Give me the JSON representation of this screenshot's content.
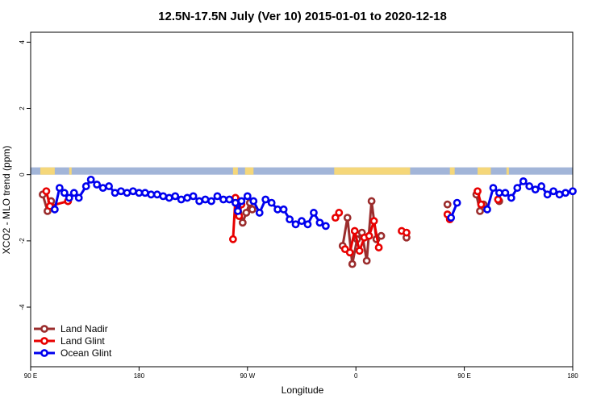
{
  "chart_data": {
    "type": "line",
    "title": "12.5N-17.5N July (Ver 10)   2015-01-01 to 2020-12-18",
    "xlabel": "Longitude",
    "ylabel": "XCO2 - MLO trend (ppm)",
    "x_tick_labels": [
      "90 E",
      "180",
      "90 W",
      "0",
      "90 E",
      "180"
    ],
    "x_tick_values": [
      90,
      180,
      270,
      360,
      450,
      540
    ],
    "y_tick_labels": [
      "-4",
      "-2",
      "0",
      "2",
      "4"
    ],
    "y_tick_values": [
      -4,
      -2,
      0,
      2,
      4
    ],
    "xlim": [
      90,
      540
    ],
    "ylim": [
      -5.8,
      4.3
    ],
    "grid": false,
    "legend": "bottom-left",
    "map_strip": {
      "ymin": 0.0,
      "ymax": 0.22,
      "ocean_color": "#a2b5d8",
      "land_color": "#f5d77a",
      "land_spans": [
        [
          98,
          110
        ],
        [
          122,
          124
        ],
        [
          258,
          262
        ],
        [
          268,
          275
        ],
        [
          342,
          405
        ],
        [
          438,
          442
        ],
        [
          461,
          472
        ],
        [
          485,
          487
        ]
      ]
    },
    "series": [
      {
        "name": "Land Nadir",
        "color": "#9b2d2d",
        "segments": [
          [
            [
              100,
              -0.6
            ],
            [
              104,
              -1.1
            ],
            [
              107,
              -0.8
            ]
          ],
          [
            [
              121,
              -0.8
            ]
          ],
          [
            [
              263,
              -0.8
            ],
            [
              266,
              -1.45
            ],
            [
              269,
              -1.15
            ],
            [
              272,
              -0.85
            ],
            [
              274,
              -1.05
            ]
          ],
          [
            [
              349,
              -2.15
            ],
            [
              353,
              -1.3
            ],
            [
              357,
              -2.7
            ],
            [
              361,
              -1.95
            ],
            [
              365,
              -1.75
            ],
            [
              369,
              -2.6
            ],
            [
              373,
              -0.8
            ],
            [
              377,
              -1.95
            ],
            [
              381,
              -1.85
            ]
          ],
          [
            [
              402,
              -1.9
            ]
          ],
          [
            [
              436,
              -0.9
            ]
          ],
          [
            [
              460,
              -0.6
            ],
            [
              463,
              -1.1
            ],
            [
              466,
              -0.9
            ]
          ],
          [
            [
              479,
              -0.8
            ]
          ]
        ]
      },
      {
        "name": "Land Glint",
        "color": "#e80000",
        "segments": [
          [
            [
              103,
              -0.5
            ],
            [
              106,
              -0.95
            ],
            [
              121,
              -0.8
            ]
          ],
          [
            [
              258,
              -1.95
            ],
            [
              260,
              -0.7
            ],
            [
              263,
              -1.25
            ],
            [
              265,
              -0.9
            ]
          ],
          [
            [
              343,
              -1.3
            ],
            [
              346,
              -1.15
            ]
          ],
          [
            [
              351,
              -2.25
            ],
            [
              355,
              -2.35
            ],
            [
              359,
              -1.7
            ],
            [
              363,
              -2.3
            ],
            [
              367,
              -1.9
            ],
            [
              371,
              -1.85
            ],
            [
              375,
              -1.4
            ],
            [
              379,
              -2.2
            ]
          ],
          [
            [
              398,
              -1.7
            ],
            [
              402,
              -1.75
            ]
          ],
          [
            [
              436,
              -1.2
            ],
            [
              438,
              -1.35
            ]
          ],
          [
            [
              461,
              -0.5
            ],
            [
              464,
              -0.9
            ]
          ],
          [
            [
              478,
              -0.75
            ]
          ]
        ]
      },
      {
        "name": "Ocean Glint",
        "color": "#0000ee",
        "segments": [
          [
            [
              110,
              -1.05
            ],
            [
              114,
              -0.4
            ],
            [
              118,
              -0.55
            ],
            [
              122,
              -0.7
            ],
            [
              126,
              -0.55
            ],
            [
              130,
              -0.7
            ],
            [
              136,
              -0.35
            ],
            [
              140,
              -0.15
            ],
            [
              145,
              -0.3
            ],
            [
              150,
              -0.4
            ],
            [
              155,
              -0.35
            ],
            [
              160,
              -0.55
            ],
            [
              165,
              -0.5
            ],
            [
              170,
              -0.55
            ],
            [
              175,
              -0.5
            ],
            [
              180,
              -0.55
            ],
            [
              185,
              -0.55
            ],
            [
              190,
              -0.6
            ],
            [
              195,
              -0.6
            ],
            [
              200,
              -0.65
            ],
            [
              205,
              -0.7
            ],
            [
              210,
              -0.65
            ],
            [
              215,
              -0.75
            ],
            [
              220,
              -0.7
            ],
            [
              225,
              -0.65
            ],
            [
              230,
              -0.8
            ],
            [
              235,
              -0.75
            ],
            [
              240,
              -0.8
            ],
            [
              245,
              -0.65
            ],
            [
              250,
              -0.75
            ],
            [
              255,
              -0.75
            ],
            [
              260,
              -0.85
            ],
            [
              262,
              -1.1
            ],
            [
              265,
              -0.8
            ],
            [
              270,
              -0.65
            ],
            [
              275,
              -0.8
            ],
            [
              280,
              -1.15
            ],
            [
              285,
              -0.75
            ],
            [
              290,
              -0.85
            ],
            [
              295,
              -1.05
            ],
            [
              300,
              -1.05
            ],
            [
              305,
              -1.35
            ],
            [
              310,
              -1.5
            ],
            [
              315,
              -1.4
            ],
            [
              320,
              -1.5
            ],
            [
              325,
              -1.15
            ],
            [
              330,
              -1.45
            ],
            [
              335,
              -1.55
            ]
          ],
          [
            [
              439,
              -1.3
            ],
            [
              444,
              -0.85
            ]
          ],
          [
            [
              469,
              -1.05
            ],
            [
              474,
              -0.4
            ],
            [
              479,
              -0.55
            ],
            [
              484,
              -0.55
            ],
            [
              489,
              -0.7
            ],
            [
              494,
              -0.4
            ],
            [
              499,
              -0.2
            ],
            [
              504,
              -0.35
            ],
            [
              509,
              -0.45
            ],
            [
              514,
              -0.35
            ],
            [
              519,
              -0.6
            ],
            [
              524,
              -0.5
            ],
            [
              529,
              -0.6
            ],
            [
              534,
              -0.55
            ],
            [
              540,
              -0.5
            ]
          ]
        ]
      }
    ]
  }
}
